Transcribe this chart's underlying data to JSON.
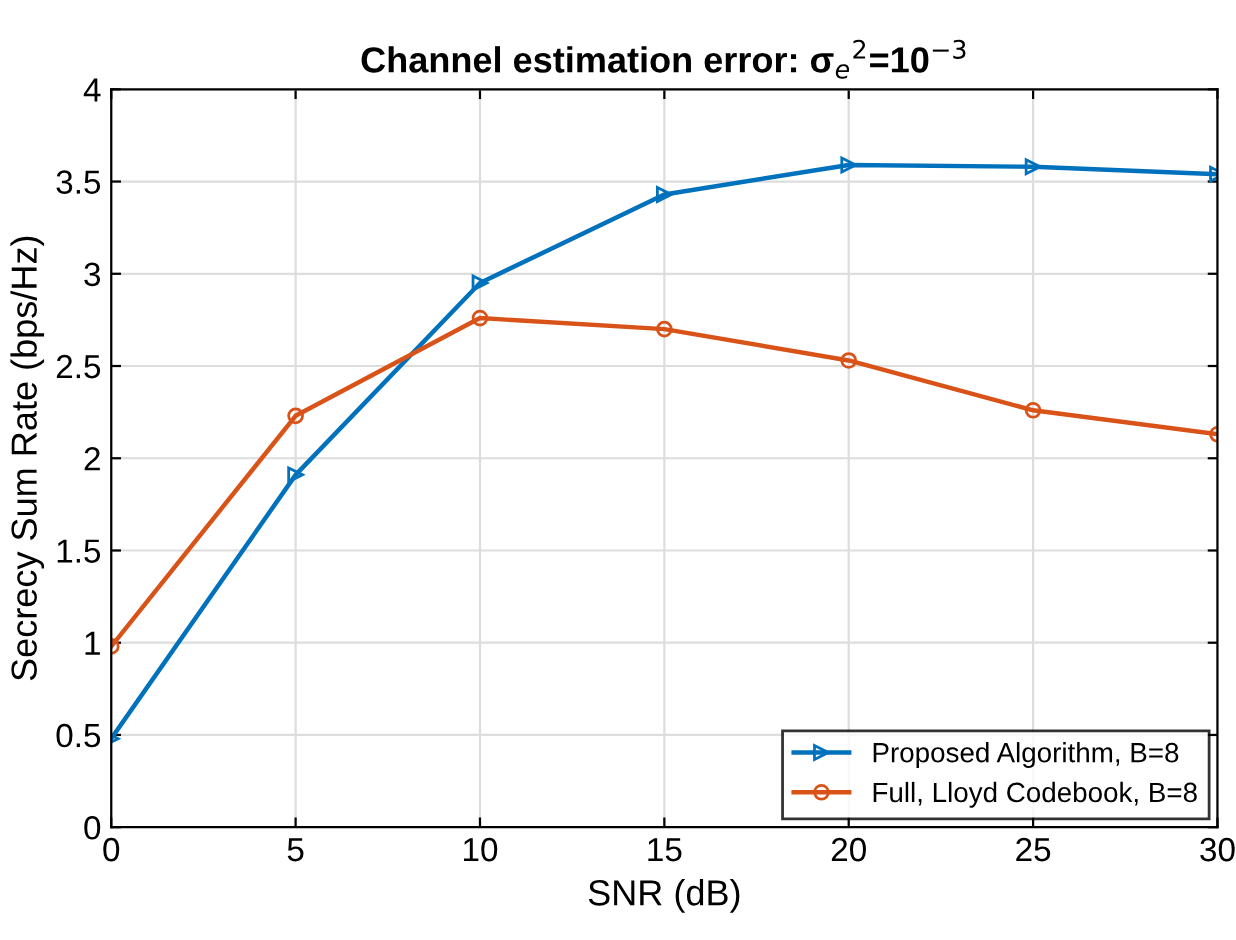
{
  "chart_data": {
    "type": "line",
    "title": "Channel estimation error: σ$_{e}$$^{2}$=10$^{−3}$",
    "xlabel": "SNR (dB)",
    "ylabel": "Secrecy Sum Rate (bps/Hz)",
    "x": [
      0,
      5,
      10,
      15,
      20,
      25,
      30
    ],
    "series": [
      {
        "name": "Proposed Algorithm, B=8",
        "color": "#0072bd",
        "marker": "triangle",
        "values": [
          0.48,
          1.91,
          2.95,
          3.43,
          3.59,
          3.58,
          3.54
        ]
      },
      {
        "name": "Full, Lloyd Codebook, B=8",
        "color": "#d95319",
        "marker": "circle",
        "values": [
          0.98,
          2.23,
          2.76,
          2.7,
          2.53,
          2.26,
          2.13
        ]
      }
    ],
    "xlim": [
      0,
      30
    ],
    "xticks": [
      0,
      5,
      10,
      15,
      20,
      25,
      30
    ],
    "ylim": [
      0,
      4
    ],
    "yticks": [
      0,
      0.5,
      1,
      1.5,
      2,
      2.5,
      3,
      3.5,
      4
    ],
    "grid": true,
    "legend": "bottom right",
    "line_style": "solid"
  }
}
